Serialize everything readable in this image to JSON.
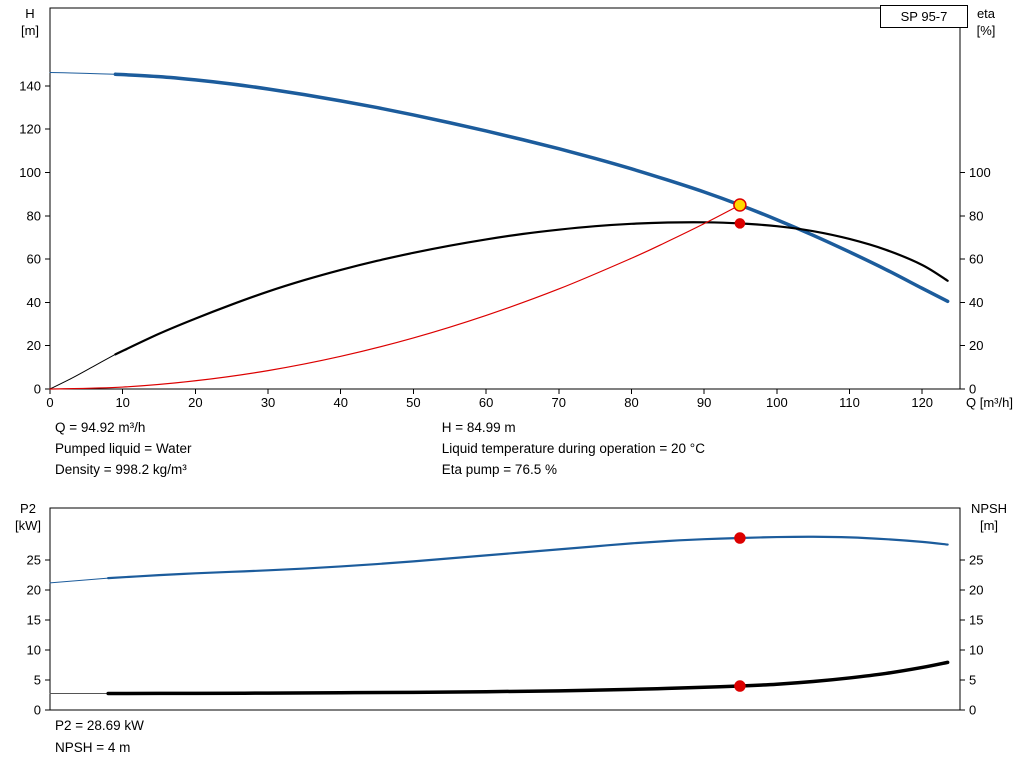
{
  "pump": {
    "model": "SP 95-7"
  },
  "axes_labels": {
    "top_left_1": "H",
    "top_left_2": "[m]",
    "top_right_1": "eta",
    "top_right_2": "[%]",
    "top_x": "Q [m³/h]",
    "bottom_left_1": "P2",
    "bottom_left_2": "[kW]",
    "bottom_right_1": "NPSH",
    "bottom_right_2": "[m]"
  },
  "results_top": {
    "q": "Q = 94.92 m³/h",
    "h": "H = 84.99 m",
    "pumped_liquid": "Pumped liquid = Water",
    "liquid_temp": "Liquid temperature during operation = 20 °C",
    "density": "Density = 998.2 kg/m³",
    "eta_pump": "Eta pump = 76.5 %"
  },
  "results_bottom": {
    "p2": "P2 = 28.69 kW",
    "npsh": "NPSH = 4 m"
  },
  "colors": {
    "curve_blue": "#1c5c9c",
    "curve_black": "#000000",
    "curve_red": "#dc0000",
    "duty_point_fill": "#ffd800",
    "duty_point_stroke": "#dc0000",
    "axis": "#000000"
  },
  "chart_data": [
    {
      "type": "line",
      "title": "SP 95-7 QH and efficiency curves",
      "xlabel": "Q [m³/h]",
      "ylabel_left": "H [m]",
      "ylabel_right": "eta [%]",
      "xlim": [
        0,
        125.2
      ],
      "ylim_left": [
        0,
        176
      ],
      "ylim_right": [
        0,
        176
      ],
      "grid": false,
      "x_ticks": [
        0,
        10,
        20,
        30,
        40,
        50,
        60,
        70,
        80,
        90,
        100,
        110,
        120
      ],
      "x_tick_labels": true,
      "y_ticks_left": [
        0,
        20,
        40,
        60,
        80,
        100,
        120,
        140
      ],
      "y_ticks_right": [
        0,
        20,
        40,
        60,
        80,
        100
      ],
      "series": [
        {
          "name": "head-curve-lowflow",
          "axis": "left",
          "color": "#1c5c9c",
          "width": 1,
          "points": [
            [
              0,
              146.2
            ],
            [
              3,
              146.0
            ],
            [
              6,
              145.7
            ],
            [
              9,
              145.4
            ]
          ]
        },
        {
          "name": "head-curve",
          "axis": "left",
          "color": "#1c5c9c",
          "width": 3.5,
          "points": [
            [
              9,
              145.4
            ],
            [
              15,
              144.3
            ],
            [
              20,
              142.8
            ],
            [
              25,
              140.9
            ],
            [
              30,
              138.6
            ],
            [
              35,
              136.0
            ],
            [
              40,
              133.1
            ],
            [
              45,
              130.0
            ],
            [
              50,
              126.6
            ],
            [
              55,
              123.0
            ],
            [
              60,
              119.2
            ],
            [
              65,
              115.2
            ],
            [
              70,
              111.0
            ],
            [
              75,
              106.5
            ],
            [
              80,
              101.7
            ],
            [
              85,
              96.5
            ],
            [
              90,
              91.0
            ],
            [
              94.92,
              85.0
            ],
            [
              100,
              78.2
            ],
            [
              105,
              71.0
            ],
            [
              110,
              63.3
            ],
            [
              115,
              55.2
            ],
            [
              120,
              46.5
            ],
            [
              123.5,
              40.5
            ]
          ]
        },
        {
          "name": "eta-curve-lowflow",
          "axis": "right",
          "color": "#000000",
          "width": 1,
          "points": [
            [
              0,
              0
            ],
            [
              3,
              5.0
            ],
            [
              6,
              10.5
            ],
            [
              9,
              16.0
            ]
          ]
        },
        {
          "name": "eta-curve",
          "axis": "right",
          "color": "#000000",
          "width": 2.2,
          "points": [
            [
              9,
              16.0
            ],
            [
              15,
              25.5
            ],
            [
              20,
              32.5
            ],
            [
              25,
              39.0
            ],
            [
              30,
              45.0
            ],
            [
              35,
              50.3
            ],
            [
              40,
              55.0
            ],
            [
              45,
              59.2
            ],
            [
              50,
              62.9
            ],
            [
              55,
              66.2
            ],
            [
              60,
              69.1
            ],
            [
              65,
              71.6
            ],
            [
              70,
              73.6
            ],
            [
              75,
              75.2
            ],
            [
              80,
              76.3
            ],
            [
              85,
              76.9
            ],
            [
              90,
              77.0
            ],
            [
              94.92,
              76.5
            ],
            [
              100,
              75.2
            ],
            [
              105,
              72.9
            ],
            [
              110,
              69.3
            ],
            [
              115,
              64.3
            ],
            [
              120,
              57.3
            ],
            [
              123.5,
              50.0
            ]
          ]
        },
        {
          "name": "system-curve",
          "axis": "left",
          "color": "#dc0000",
          "width": 1.2,
          "points": [
            [
              0,
              0
            ],
            [
              10,
              0.9
            ],
            [
              20,
              3.8
            ],
            [
              30,
              8.5
            ],
            [
              40,
              15.1
            ],
            [
              50,
              23.6
            ],
            [
              60,
              34.0
            ],
            [
              70,
              46.2
            ],
            [
              80,
              60.4
            ],
            [
              85,
              68.2
            ],
            [
              90,
              76.4
            ],
            [
              94.92,
              84.99
            ]
          ]
        }
      ],
      "markers": [
        {
          "name": "duty-point-eta",
          "x": 94.92,
          "y": 76.5,
          "axis": "right",
          "r": 4.5,
          "fill": "#dc0000",
          "stroke": "#dc0000"
        },
        {
          "name": "duty-point-qh",
          "x": 94.92,
          "y": 84.99,
          "axis": "left",
          "r": 6,
          "fill": "#ffd800",
          "stroke": "#dc0000"
        }
      ]
    },
    {
      "type": "line",
      "title": "P2 and NPSH curves",
      "xlabel": "",
      "ylabel_left": "P2 [kW]",
      "ylabel_right": "NPSH [m]",
      "xlim": [
        0,
        125.2
      ],
      "ylim_left": [
        0,
        33.7
      ],
      "ylim_right": [
        0,
        33.7
      ],
      "grid": false,
      "x_ticks": [],
      "x_tick_labels": false,
      "y_ticks_left": [
        0,
        5,
        10,
        15,
        20,
        25
      ],
      "y_ticks_right": [
        0,
        5,
        10,
        15,
        20,
        25
      ],
      "series": [
        {
          "name": "p2-curve-lowflow",
          "axis": "left",
          "color": "#1c5c9c",
          "width": 1,
          "points": [
            [
              0,
              21.2
            ],
            [
              4,
              21.6
            ],
            [
              8,
              22.0
            ]
          ]
        },
        {
          "name": "p2-curve",
          "axis": "left",
          "color": "#1c5c9c",
          "width": 2.2,
          "points": [
            [
              8,
              22.0
            ],
            [
              15,
              22.5
            ],
            [
              20,
              22.8
            ],
            [
              25,
              23.05
            ],
            [
              30,
              23.3
            ],
            [
              35,
              23.6
            ],
            [
              40,
              23.95
            ],
            [
              45,
              24.35
            ],
            [
              50,
              24.8
            ],
            [
              55,
              25.3
            ],
            [
              60,
              25.8
            ],
            [
              65,
              26.3
            ],
            [
              70,
              26.8
            ],
            [
              75,
              27.3
            ],
            [
              80,
              27.8
            ],
            [
              85,
              28.2
            ],
            [
              90,
              28.5
            ],
            [
              94.92,
              28.69
            ],
            [
              100,
              28.85
            ],
            [
              105,
              28.9
            ],
            [
              110,
              28.8
            ],
            [
              115,
              28.5
            ],
            [
              120,
              28.05
            ],
            [
              123.5,
              27.6
            ]
          ]
        },
        {
          "name": "npsh-curve-lowflow",
          "axis": "right",
          "color": "#555555",
          "width": 1,
          "points": [
            [
              0,
              2.75
            ],
            [
              4,
              2.75
            ],
            [
              8,
              2.75
            ]
          ]
        },
        {
          "name": "npsh-curve",
          "axis": "right",
          "color": "#000000",
          "width": 3.5,
          "points": [
            [
              8,
              2.75
            ],
            [
              20,
              2.78
            ],
            [
              30,
              2.82
            ],
            [
              40,
              2.88
            ],
            [
              50,
              2.95
            ],
            [
              60,
              3.05
            ],
            [
              70,
              3.2
            ],
            [
              80,
              3.45
            ],
            [
              85,
              3.6
            ],
            [
              90,
              3.8
            ],
            [
              94.92,
              4.0
            ],
            [
              100,
              4.3
            ],
            [
              105,
              4.75
            ],
            [
              110,
              5.35
            ],
            [
              115,
              6.1
            ],
            [
              120,
              7.1
            ],
            [
              123.5,
              7.95
            ]
          ]
        }
      ],
      "markers": [
        {
          "name": "duty-point-p2",
          "x": 94.92,
          "y": 28.69,
          "axis": "left",
          "r": 5,
          "fill": "#dc0000",
          "stroke": "#dc0000"
        },
        {
          "name": "duty-point-npsh",
          "x": 94.92,
          "y": 4.0,
          "axis": "right",
          "r": 5,
          "fill": "#dc0000",
          "stroke": "#dc0000"
        }
      ]
    }
  ]
}
